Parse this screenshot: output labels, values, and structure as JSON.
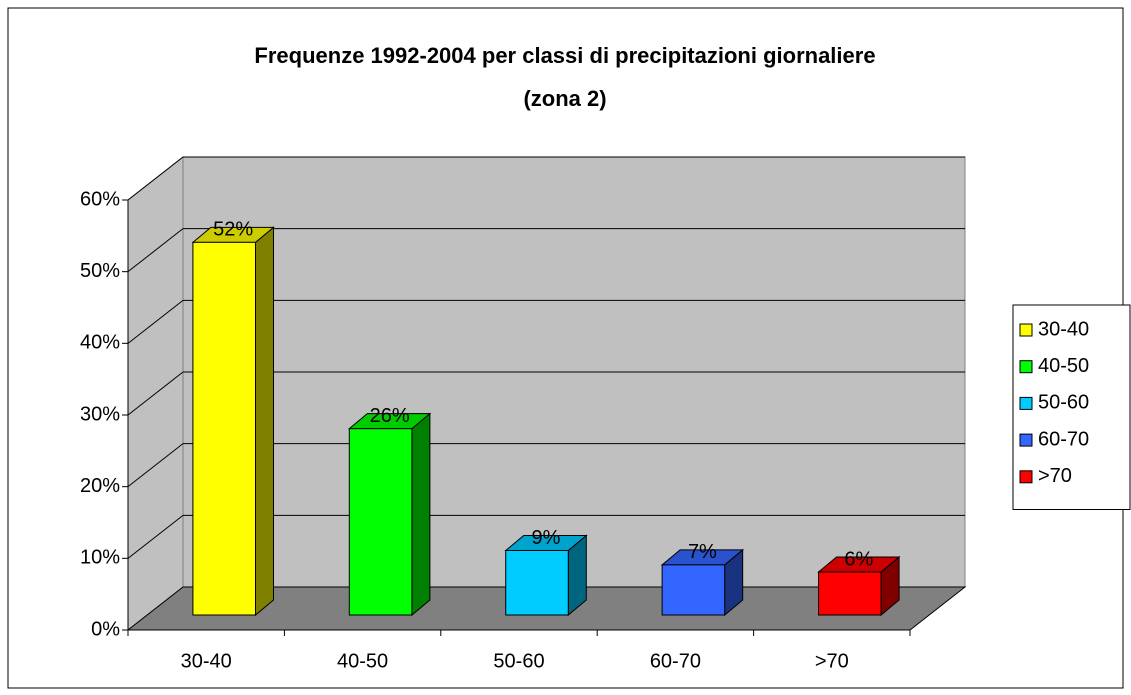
{
  "chart_data": {
    "type": "bar3d",
    "title": "Frequenze 1992-2004 per classi di precipitazioni giornaliere",
    "subtitle": "(zona 2)",
    "categories": [
      "30-40",
      "40-50",
      "50-60",
      "60-70",
      ">70"
    ],
    "values": [
      52,
      26,
      9,
      7,
      6
    ],
    "value_labels": [
      "52%",
      "26%",
      "9%",
      "7%",
      "6%"
    ],
    "colors": [
      "#ffff00",
      "#00ff00",
      "#00ccff",
      "#3366ff",
      "#ff0000"
    ],
    "ylim": [
      0,
      60
    ],
    "yticks": [
      {
        "value": 0,
        "label": "0%"
      },
      {
        "value": 10,
        "label": "10%"
      },
      {
        "value": 20,
        "label": "20%"
      },
      {
        "value": 30,
        "label": "30%"
      },
      {
        "value": 40,
        "label": "40%"
      },
      {
        "value": 50,
        "label": "50%"
      },
      {
        "value": 60,
        "label": "60%"
      }
    ],
    "grid": true,
    "legend": "right"
  }
}
